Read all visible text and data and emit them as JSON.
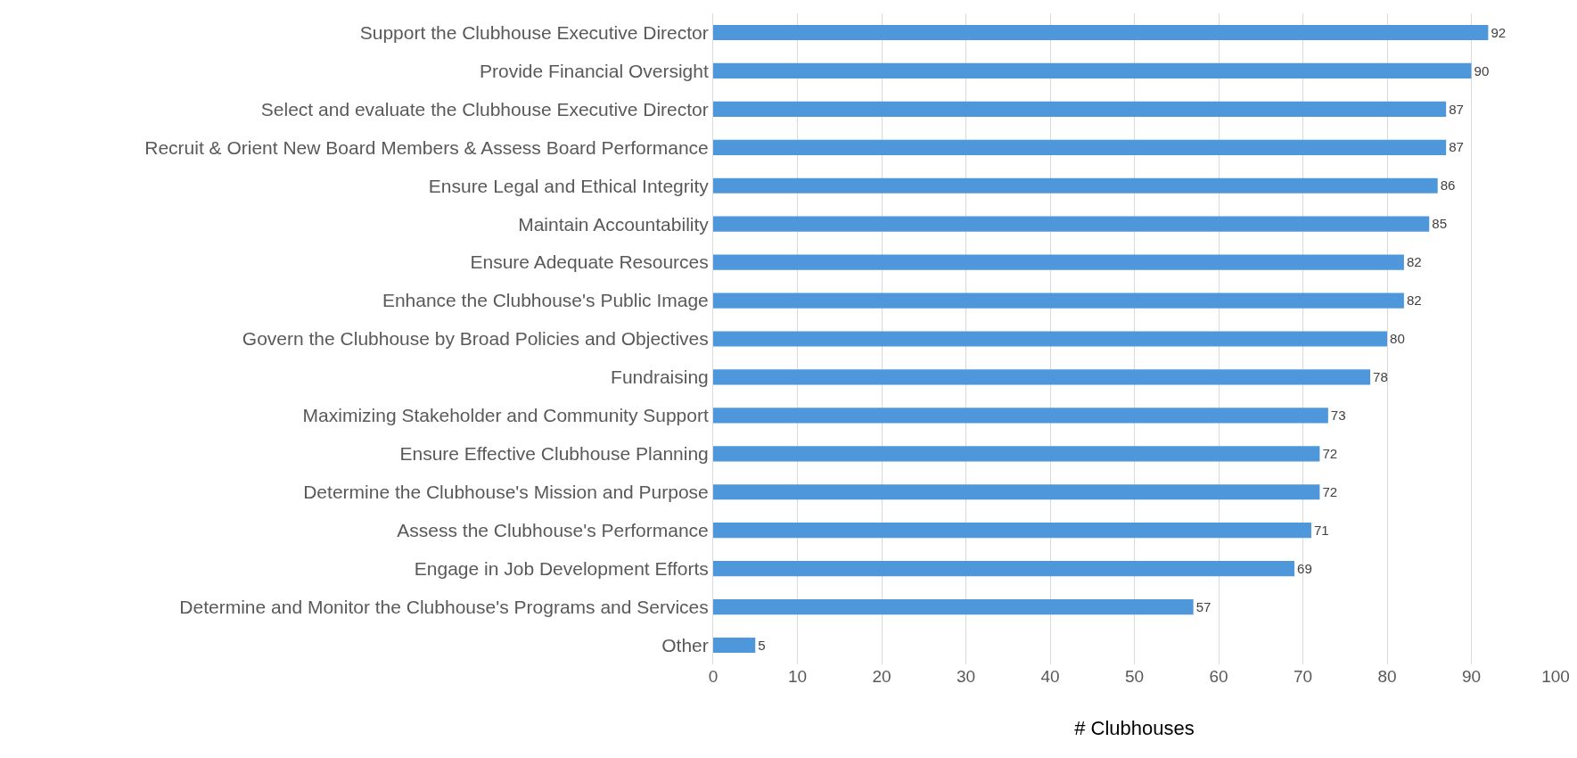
{
  "chart_data": {
    "type": "bar",
    "orientation": "horizontal",
    "xlabel": "# Clubhouses",
    "categories": [
      "Support the Clubhouse Executive Director",
      "Provide Financial Oversight",
      "Select and evaluate the Clubhouse Executive Director",
      "Recruit & Orient New Board Members & Assess Board Performance",
      "Ensure Legal and Ethical Integrity",
      "Maintain Accountability",
      "Ensure Adequate Resources",
      "Enhance the Clubhouse's Public Image",
      "Govern the Clubhouse by Broad Policies and Objectives",
      "Fundraising",
      "Maximizing Stakeholder and Community Support",
      "Ensure Effective Clubhouse Planning",
      "Determine the Clubhouse's Mission and Purpose",
      "Assess the Clubhouse's Performance",
      "Engage in Job Development Efforts",
      "Determine and Monitor the Clubhouse's Programs and Services",
      "Other"
    ],
    "values": [
      92,
      90,
      87,
      87,
      86,
      85,
      82,
      82,
      80,
      78,
      73,
      72,
      72,
      71,
      69,
      57,
      5
    ],
    "color": "#4f97db",
    "xlim": [
      0,
      100
    ],
    "xticks": [
      0,
      10,
      20,
      30,
      40,
      50,
      60,
      70,
      80,
      90,
      100
    ],
    "grid": "x",
    "data_labels": true
  }
}
